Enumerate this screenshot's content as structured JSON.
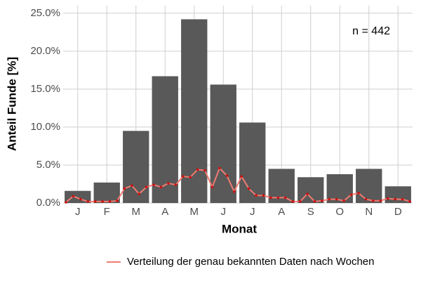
{
  "chart_data": {
    "type": "bar",
    "x_label": "Monat",
    "y_label": "Anteil Funde [%]",
    "annotation": "n = 442",
    "categories": [
      "J",
      "F",
      "M",
      "A",
      "M",
      "J",
      "J",
      "A",
      "S",
      "O",
      "N",
      "D"
    ],
    "values": [
      1.6,
      2.7,
      9.5,
      16.7,
      24.2,
      15.6,
      10.6,
      4.5,
      3.4,
      3.8,
      4.5,
      2.2
    ],
    "color": "#595959",
    "line": {
      "name": "Verteilung der genau bekannten Daten nach Wochen",
      "color": "#f07b72",
      "point_color": "#cc1111",
      "values": [
        0.1,
        0.9,
        0.5,
        0.2,
        0.2,
        0.2,
        0.2,
        0.3,
        1.9,
        2.3,
        1.2,
        2.1,
        2.4,
        2.1,
        2.6,
        2.4,
        3.5,
        3.4,
        4.4,
        4.3,
        2.1,
        4.6,
        3.6,
        1.5,
        3.5,
        1.9,
        1.0,
        1.0,
        0.7,
        0.7,
        0.7,
        0.2,
        0.2,
        1.2,
        0.2,
        0.3,
        0.5,
        0.5,
        0.3,
        1.1,
        1.3,
        0.5,
        0.3,
        0.3,
        0.6,
        0.5,
        0.5,
        0.2
      ]
    },
    "ylim": [
      0,
      26
    ],
    "yticks": [
      {
        "value": 0,
        "label": "0.0%"
      },
      {
        "value": 5,
        "label": "5.0%"
      },
      {
        "value": 10,
        "label": "10.0%"
      },
      {
        "value": 15,
        "label": "15.0%"
      },
      {
        "value": 20,
        "label": "20.0%"
      },
      {
        "value": 25,
        "label": "25.0%"
      }
    ],
    "grid": true
  }
}
